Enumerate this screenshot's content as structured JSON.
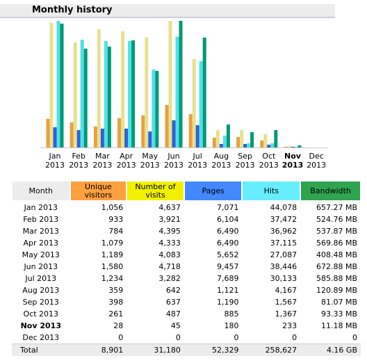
{
  "section": {
    "title": "Monthly history"
  },
  "chart_data": {
    "type": "bar",
    "categories": [
      {
        "month": "Jan",
        "year": "2013"
      },
      {
        "month": "Feb",
        "year": "2013"
      },
      {
        "month": "Mar",
        "year": "2013"
      },
      {
        "month": "Apr",
        "year": "2013"
      },
      {
        "month": "May",
        "year": "2013"
      },
      {
        "month": "Jun",
        "year": "2013"
      },
      {
        "month": "Jul",
        "year": "2013"
      },
      {
        "month": "Aug",
        "year": "2013"
      },
      {
        "month": "Sep",
        "year": "2013"
      },
      {
        "month": "Oct",
        "year": "2013"
      },
      {
        "month": "Nov",
        "year": "2013"
      },
      {
        "month": "Dec",
        "year": "2013"
      }
    ],
    "current_index": 10,
    "series": [
      {
        "key": "unique_visitors",
        "color": "#e8a040",
        "values": [
          1056,
          933,
          784,
          1079,
          1189,
          1580,
          1234,
          359,
          398,
          261,
          28,
          0
        ]
      },
      {
        "key": "visits",
        "color": "#e8e090",
        "values": [
          4637,
          3921,
          4395,
          4333,
          4083,
          4718,
          3282,
          642,
          637,
          487,
          45,
          0
        ]
      },
      {
        "key": "pages",
        "color": "#3060d8",
        "values": [
          7071,
          6104,
          6490,
          6490,
          5652,
          9457,
          7689,
          1121,
          1190,
          885,
          180,
          0
        ]
      },
      {
        "key": "hits",
        "color": "#50e0e8",
        "values": [
          44078,
          37472,
          36962,
          37115,
          27087,
          38446,
          30133,
          4167,
          1567,
          1367,
          233,
          0
        ]
      },
      {
        "key": "bandwidth_mb",
        "color": "#009977",
        "values": [
          657.27,
          524.76,
          537.87,
          569.86,
          408.48,
          672.88,
          585.88,
          120.89,
          81.07,
          93.33,
          11.18,
          0
        ]
      }
    ]
  },
  "table": {
    "headers": {
      "month": "Month",
      "unique_visitors": "Unique visitors",
      "visits": "Number of visits",
      "pages": "Pages",
      "hits": "Hits",
      "bandwidth": "Bandwidth"
    },
    "header_colors": {
      "month": "#ececec",
      "unique_visitors": "#ffa040",
      "visits": "#f0f000",
      "pages": "#4488ff",
      "hits": "#66eeff",
      "bandwidth": "#2ea44f"
    },
    "rows": [
      {
        "month": "Jan 2013",
        "unique_visitors": "1,056",
        "visits": "4,637",
        "pages": "7,071",
        "hits": "44,078",
        "bandwidth": "657.27 MB"
      },
      {
        "month": "Feb 2013",
        "unique_visitors": "933",
        "visits": "3,921",
        "pages": "6,104",
        "hits": "37,472",
        "bandwidth": "524.76 MB"
      },
      {
        "month": "Mar 2013",
        "unique_visitors": "784",
        "visits": "4,395",
        "pages": "6,490",
        "hits": "36,962",
        "bandwidth": "537.87 MB"
      },
      {
        "month": "Apr 2013",
        "unique_visitors": "1,079",
        "visits": "4,333",
        "pages": "6,490",
        "hits": "37,115",
        "bandwidth": "569.86 MB"
      },
      {
        "month": "May 2013",
        "unique_visitors": "1,189",
        "visits": "4,083",
        "pages": "5,652",
        "hits": "27,087",
        "bandwidth": "408.48 MB"
      },
      {
        "month": "Jun 2013",
        "unique_visitors": "1,580",
        "visits": "4,718",
        "pages": "9,457",
        "hits": "38,446",
        "bandwidth": "672.88 MB"
      },
      {
        "month": "Jul 2013",
        "unique_visitors": "1,234",
        "visits": "3,282",
        "pages": "7,689",
        "hits": "30,133",
        "bandwidth": "585.88 MB"
      },
      {
        "month": "Aug 2013",
        "unique_visitors": "359",
        "visits": "642",
        "pages": "1,121",
        "hits": "4,167",
        "bandwidth": "120.89 MB"
      },
      {
        "month": "Sep 2013",
        "unique_visitors": "398",
        "visits": "637",
        "pages": "1,190",
        "hits": "1,567",
        "bandwidth": "81.07 MB"
      },
      {
        "month": "Oct 2013",
        "unique_visitors": "261",
        "visits": "487",
        "pages": "885",
        "hits": "1,367",
        "bandwidth": "93.33 MB"
      },
      {
        "month": "Nov 2013",
        "unique_visitors": "28",
        "visits": "45",
        "pages": "180",
        "hits": "233",
        "bandwidth": "11.18 MB"
      },
      {
        "month": "Dec 2013",
        "unique_visitors": "0",
        "visits": "0",
        "pages": "0",
        "hits": "0",
        "bandwidth": "0"
      }
    ],
    "total": {
      "month": "Total",
      "unique_visitors": "8,901",
      "visits": "31,180",
      "pages": "52,329",
      "hits": "258,627",
      "bandwidth": "4.16 GB"
    }
  }
}
